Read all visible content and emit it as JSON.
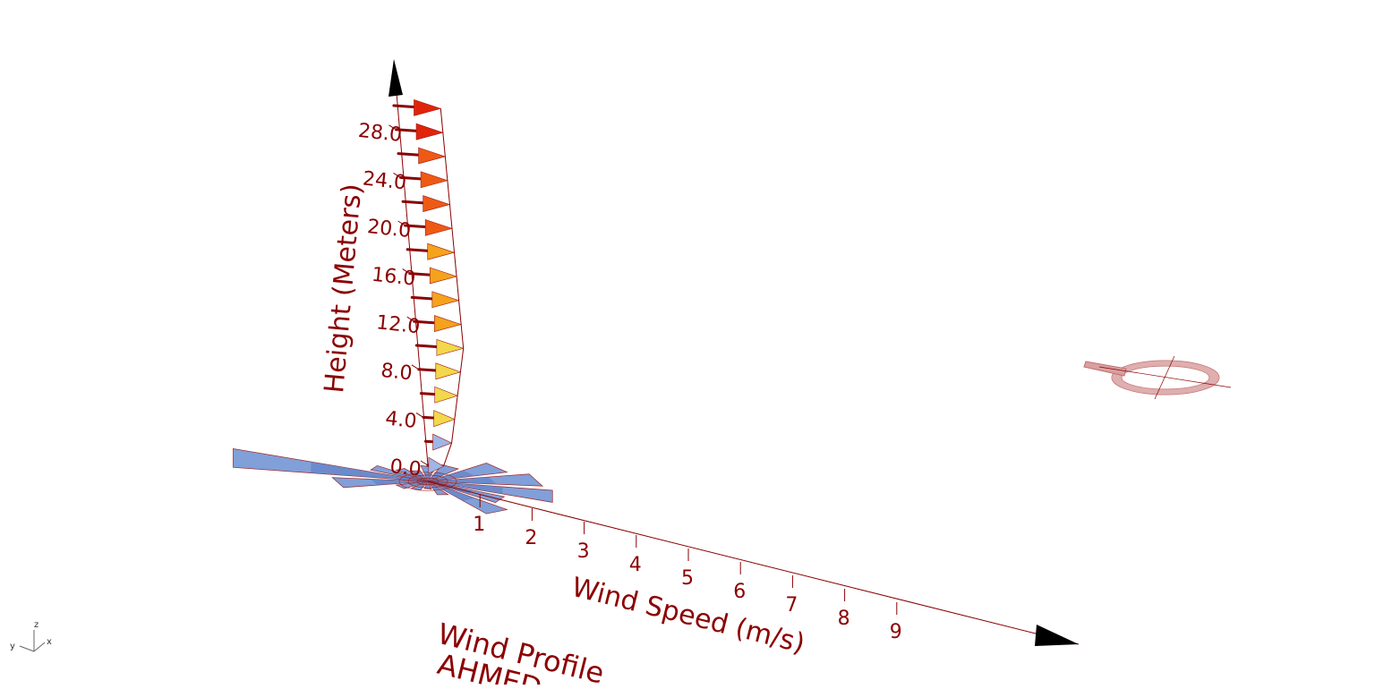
{
  "colors": {
    "axis": "#8b0000",
    "text": "#8b0000",
    "rose_fill": "#7b9ad6",
    "rose_fill_dark": "#5e7fc4",
    "rose_edge": "#9b1b1b",
    "arrowhead": "#000000",
    "compass": "#d9a0a0",
    "gradient": [
      "#9fb6e6",
      "#f2d84a",
      "#f5a21d",
      "#ee5a14",
      "#e0240a"
    ]
  },
  "viewport": {
    "triad": {
      "z": "z",
      "y": "y",
      "x": "x"
    }
  },
  "chart_data": [
    {
      "type": "bar",
      "title": "Wind Profile",
      "subtitle": "AHMED",
      "xlabel": "Wind Speed (m/s)",
      "ylabel": "Height (Meters)",
      "x_ticks": [
        "1",
        "2",
        "3",
        "4",
        "5",
        "6",
        "7",
        "8",
        "9"
      ],
      "y_ticks": [
        "0.0",
        "4.0",
        "8.0",
        "12.0",
        "16.0",
        "20.0",
        "24.0",
        "28.0"
      ],
      "xlim": [
        0,
        10
      ],
      "ylim": [
        0,
        30
      ],
      "heights": [
        0,
        2,
        4,
        6,
        8,
        10,
        12,
        14,
        16,
        18,
        20,
        22,
        24,
        26,
        28,
        30
      ],
      "speeds": [
        0.3,
        0.5,
        0.6,
        0.7,
        0.8,
        0.9,
        0.9,
        0.9,
        0.9,
        0.9,
        0.9,
        0.9,
        0.9,
        0.9,
        0.9,
        0.9
      ]
    },
    {
      "type": "rose",
      "directions": 16,
      "values": [
        5.0,
        1.5,
        1.0,
        0.8,
        1.2,
        1.5,
        2.5,
        3.0,
        3.2,
        2.0,
        2.5,
        1.0,
        0.6,
        0.8,
        1.0,
        2.5
      ]
    }
  ]
}
